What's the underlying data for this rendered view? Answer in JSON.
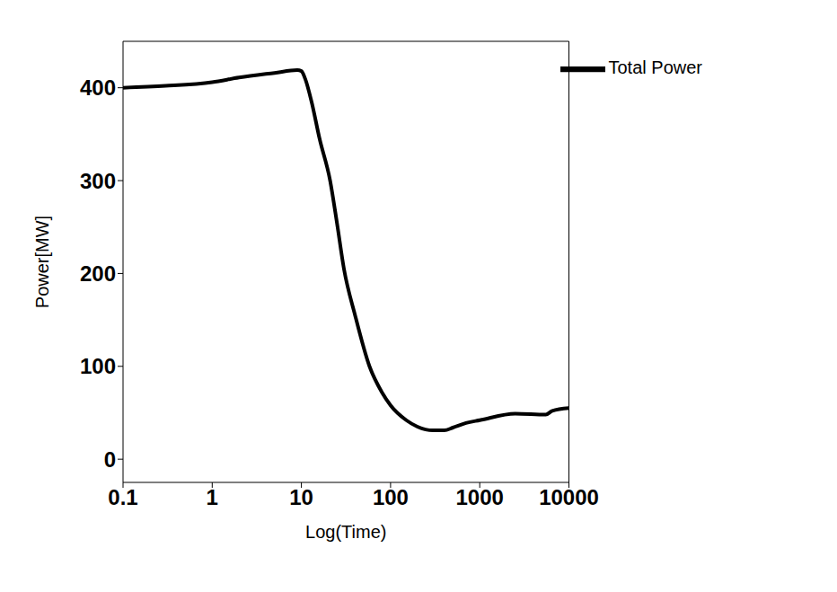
{
  "chart_data": {
    "type": "line",
    "x_label": "Log(Time)",
    "y_label": "Power[MW]",
    "x": [
      0.1,
      0.3,
      1,
      2,
      5,
      9,
      10,
      11,
      13,
      16,
      21,
      25,
      30,
      40,
      58,
      80,
      100,
      150,
      200,
      300,
      400,
      500,
      700,
      1000,
      2500,
      5500,
      6500,
      10000
    ],
    "series": [
      {
        "name": "Total Power",
        "color": "#000000",
        "values": [
          400,
          402,
          406,
          411,
          416,
          419,
          418,
          410,
          385,
          345,
          300,
          255,
          205,
          155,
          100,
          72,
          58,
          42,
          35,
          31,
          31,
          34,
          39,
          42,
          49,
          48,
          52,
          55
        ]
      }
    ],
    "xlim": [
      0.1,
      10000
    ],
    "ylim": [
      -25,
      450
    ],
    "xticks": [
      0.1,
      1,
      10,
      100,
      1000,
      10000
    ],
    "yticks": [
      0,
      100,
      200,
      300,
      400
    ],
    "log": "x",
    "legend": "upper right"
  }
}
